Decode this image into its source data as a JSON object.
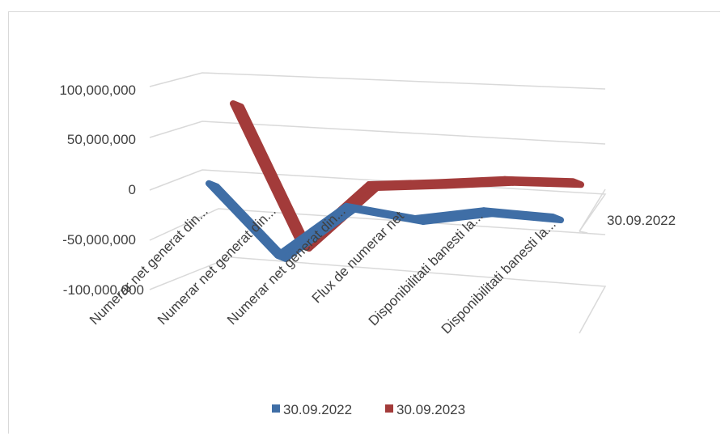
{
  "chart_data": {
    "type": "line",
    "subtype": "3d-line",
    "categories": [
      "Numerar net generat din...",
      "Numerar net generat din...",
      "Numerar net generat din...",
      "Flux de numerar net",
      "Disponibilitati banesti la...",
      "Disponibilitati  banesti la..."
    ],
    "series": [
      {
        "name": "30.09.2022",
        "color": "#3f6ea6",
        "values": [
          25000000,
          -45000000,
          5000000,
          -6000000,
          3000000,
          -2000000
        ]
      },
      {
        "name": "30.09.2023",
        "color": "#a33b3a",
        "values": [
          80000000,
          -60000000,
          0,
          2000000,
          5000000,
          3000000
        ]
      }
    ],
    "y_tick_labels": [
      "100,000,000",
      "50,000,000",
      "0",
      "-50,000,000",
      "-100,000,000"
    ],
    "depth_label": "30.09.2022",
    "legend_position": "bottom",
    "grid": true
  }
}
